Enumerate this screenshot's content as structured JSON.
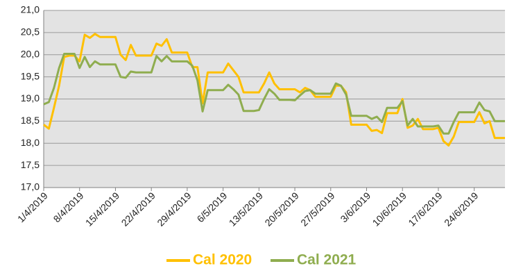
{
  "chart_data": {
    "type": "line",
    "x": [
      "2019-04-01",
      "2019-04-02",
      "2019-04-03",
      "2019-04-04",
      "2019-04-05",
      "2019-04-06",
      "2019-04-07",
      "2019-04-08",
      "2019-04-09",
      "2019-04-10",
      "2019-04-11",
      "2019-04-12",
      "2019-04-13",
      "2019-04-14",
      "2019-04-15",
      "2019-04-16",
      "2019-04-17",
      "2019-04-18",
      "2019-04-19",
      "2019-04-20",
      "2019-04-21",
      "2019-04-22",
      "2019-04-23",
      "2019-04-24",
      "2019-04-25",
      "2019-04-26",
      "2019-04-27",
      "2019-04-28",
      "2019-04-29",
      "2019-04-30",
      "2019-05-01",
      "2019-05-02",
      "2019-05-03",
      "2019-05-04",
      "2019-05-05",
      "2019-05-06",
      "2019-05-07",
      "2019-05-08",
      "2019-05-09",
      "2019-05-10",
      "2019-05-11",
      "2019-05-12",
      "2019-05-13",
      "2019-05-14",
      "2019-05-15",
      "2019-05-16",
      "2019-05-17",
      "2019-05-18",
      "2019-05-19",
      "2019-05-20",
      "2019-05-21",
      "2019-05-22",
      "2019-05-23",
      "2019-05-24",
      "2019-05-25",
      "2019-05-26",
      "2019-05-27",
      "2019-05-28",
      "2019-05-29",
      "2019-05-30",
      "2019-05-31",
      "2019-06-01",
      "2019-06-02",
      "2019-06-03",
      "2019-06-04",
      "2019-06-05",
      "2019-06-06",
      "2019-06-07",
      "2019-06-08",
      "2019-06-09",
      "2019-06-10",
      "2019-06-11",
      "2019-06-12",
      "2019-06-13",
      "2019-06-14",
      "2019-06-15",
      "2019-06-16",
      "2019-06-17",
      "2019-06-18",
      "2019-06-19",
      "2019-06-20",
      "2019-06-21",
      "2019-06-22",
      "2019-06-23",
      "2019-06-24",
      "2019-06-25",
      "2019-06-26",
      "2019-06-27",
      "2019-06-28",
      "2019-06-29",
      "2019-06-30"
    ],
    "series": [
      {
        "name": "Cal 2020",
        "color": "#ffc000",
        "values": [
          18.42,
          18.33,
          18.8,
          19.3,
          19.95,
          19.98,
          19.98,
          19.85,
          20.45,
          20.38,
          20.47,
          20.4,
          20.4,
          20.4,
          20.4,
          20.0,
          19.88,
          20.22,
          19.98,
          19.98,
          19.98,
          19.98,
          20.25,
          20.2,
          20.35,
          20.05,
          20.05,
          20.05,
          20.05,
          19.72,
          19.72,
          18.9,
          19.6,
          19.6,
          19.6,
          19.6,
          19.8,
          19.65,
          19.5,
          19.15,
          19.15,
          19.15,
          19.15,
          19.35,
          19.6,
          19.35,
          19.22,
          19.22,
          19.22,
          19.22,
          19.15,
          19.25,
          19.2,
          19.05,
          19.05,
          19.05,
          19.05,
          19.3,
          19.3,
          19.15,
          18.42,
          18.42,
          18.42,
          18.42,
          18.28,
          18.3,
          18.23,
          18.68,
          18.68,
          18.68,
          19.0,
          18.35,
          18.4,
          18.55,
          18.32,
          18.32,
          18.32,
          18.35,
          18.05,
          17.95,
          18.15,
          18.48,
          18.48,
          18.48,
          18.48,
          18.7,
          18.45,
          18.5,
          18.12,
          18.12,
          18.12
        ]
      },
      {
        "name": "Cal 2021",
        "color": "#8fad4f",
        "values": [
          18.88,
          18.93,
          19.25,
          19.7,
          20.02,
          20.02,
          20.02,
          19.7,
          19.95,
          19.72,
          19.85,
          19.78,
          19.78,
          19.78,
          19.78,
          19.5,
          19.48,
          19.62,
          19.6,
          19.6,
          19.6,
          19.6,
          19.97,
          19.85,
          19.97,
          19.85,
          19.85,
          19.85,
          19.85,
          19.75,
          19.42,
          18.72,
          19.2,
          19.2,
          19.2,
          19.2,
          19.32,
          19.22,
          19.1,
          18.73,
          18.73,
          18.73,
          18.75,
          19.0,
          19.22,
          19.12,
          18.98,
          18.98,
          18.98,
          18.97,
          19.08,
          19.18,
          19.2,
          19.12,
          19.12,
          19.12,
          19.12,
          19.35,
          19.3,
          19.1,
          18.62,
          18.62,
          18.62,
          18.62,
          18.55,
          18.6,
          18.48,
          18.8,
          18.8,
          18.8,
          18.95,
          18.4,
          18.55,
          18.38,
          18.38,
          18.38,
          18.38,
          18.4,
          18.22,
          18.22,
          18.48,
          18.7,
          18.7,
          18.7,
          18.7,
          18.92,
          18.75,
          18.72,
          18.5,
          18.5,
          18.5
        ]
      }
    ],
    "xlim": [
      "2019-04-01",
      "2019-06-30"
    ],
    "xticks": [
      {
        "value": "2019-04-01",
        "label": "1/4/2019"
      },
      {
        "value": "2019-04-08",
        "label": "8/4/2019"
      },
      {
        "value": "2019-04-15",
        "label": "15/4/2019"
      },
      {
        "value": "2019-04-22",
        "label": "22/4/2019"
      },
      {
        "value": "2019-04-29",
        "label": "29/4/2019"
      },
      {
        "value": "2019-05-06",
        "label": "6/5/2019"
      },
      {
        "value": "2019-05-13",
        "label": "13/5/2019"
      },
      {
        "value": "2019-05-20",
        "label": "20/5/2019"
      },
      {
        "value": "2019-05-27",
        "label": "27/5/2019"
      },
      {
        "value": "2019-06-03",
        "label": "3/6/2019"
      },
      {
        "value": "2019-06-10",
        "label": "10/6/2019"
      },
      {
        "value": "2019-06-17",
        "label": "17/6/2019"
      },
      {
        "value": "2019-06-24",
        "label": "24/6/2019"
      }
    ],
    "ylim": [
      17,
      21
    ],
    "yticks": [
      {
        "value": 17,
        "label": "17,0"
      },
      {
        "value": 17.5,
        "label": "17,5"
      },
      {
        "value": 18,
        "label": "18,0"
      },
      {
        "value": 18.5,
        "label": "18,5"
      },
      {
        "value": 19,
        "label": "19,0"
      },
      {
        "value": 19.5,
        "label": "19,5"
      },
      {
        "value": 20,
        "label": "20,0"
      },
      {
        "value": 20.5,
        "label": "20,5"
      },
      {
        "value": 21,
        "label": "21,0"
      }
    ],
    "grid": true,
    "legend": "bottom"
  }
}
